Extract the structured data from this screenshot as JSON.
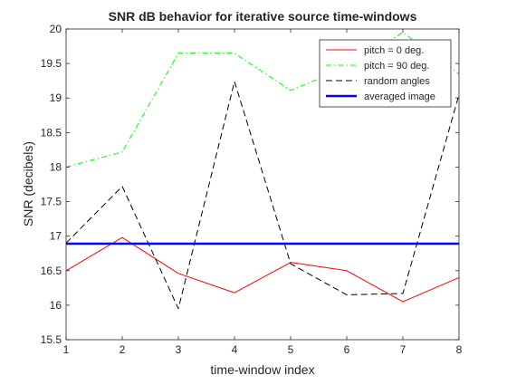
{
  "chart_data": {
    "type": "line",
    "title": "SNR dB behavior for iterative source time-windows",
    "xlabel": "time-window index",
    "ylabel": "SNR (decibels)",
    "xlim": [
      1,
      8
    ],
    "ylim": [
      15.5,
      20
    ],
    "xticks": [
      1,
      2,
      3,
      4,
      5,
      6,
      7,
      8
    ],
    "yticks": [
      15.5,
      16,
      16.5,
      17,
      17.5,
      18,
      18.5,
      19,
      19.5,
      20
    ],
    "x": [
      1,
      2,
      3,
      4,
      5,
      6,
      7,
      8
    ],
    "grid": false,
    "legend_position": "top-right",
    "series": [
      {
        "name": "pitch = 0 deg.",
        "color": "#ff0000",
        "line_style": "solid",
        "values": [
          16.5,
          16.98,
          16.46,
          16.18,
          16.62,
          16.5,
          16.05,
          16.4
        ]
      },
      {
        "name": "pitch = 90 deg.",
        "color": "#00ff00",
        "line_style": "dash-dot",
        "values": [
          18.0,
          18.22,
          19.65,
          19.65,
          19.11,
          19.45,
          19.95,
          19.35
        ]
      },
      {
        "name": "random angles",
        "color": "#000000",
        "line_style": "dashed",
        "values": [
          16.9,
          17.72,
          15.95,
          19.24,
          16.6,
          16.15,
          16.17,
          19.05
        ]
      },
      {
        "name": "averaged image",
        "color": "#0000ff",
        "line_style": "solid-thick",
        "values": [
          16.89,
          16.89,
          16.89,
          16.89,
          16.89,
          16.89,
          16.89,
          16.89
        ]
      }
    ]
  }
}
